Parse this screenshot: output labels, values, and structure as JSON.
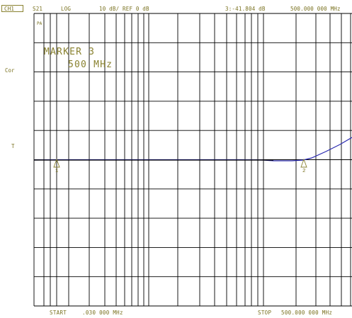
{
  "header": {
    "channel": "CH1",
    "parameter": "S21",
    "format": "LOG",
    "scale_ref": "10 dB/ REF 0 dB",
    "marker_readout": "3:-41.804 dB",
    "marker_freq": "500.000 000 MHz"
  },
  "side_labels": {
    "pa": "PA",
    "cor": "Cor",
    "ref_marker": "T"
  },
  "marker_annotation": {
    "line1": "MARKER 3",
    "line2": "500 MHz"
  },
  "footer": {
    "start_label": "START",
    "start_value": ".030 000 MHz",
    "stop_label": "STOP",
    "stop_value": "500.000 000 MHz"
  },
  "markers": [
    {
      "label": "1"
    },
    {
      "label": "2"
    }
  ],
  "colors": {
    "annotation": "#7a7220",
    "grid": "#000000",
    "trace": "#2a2ab0"
  }
}
